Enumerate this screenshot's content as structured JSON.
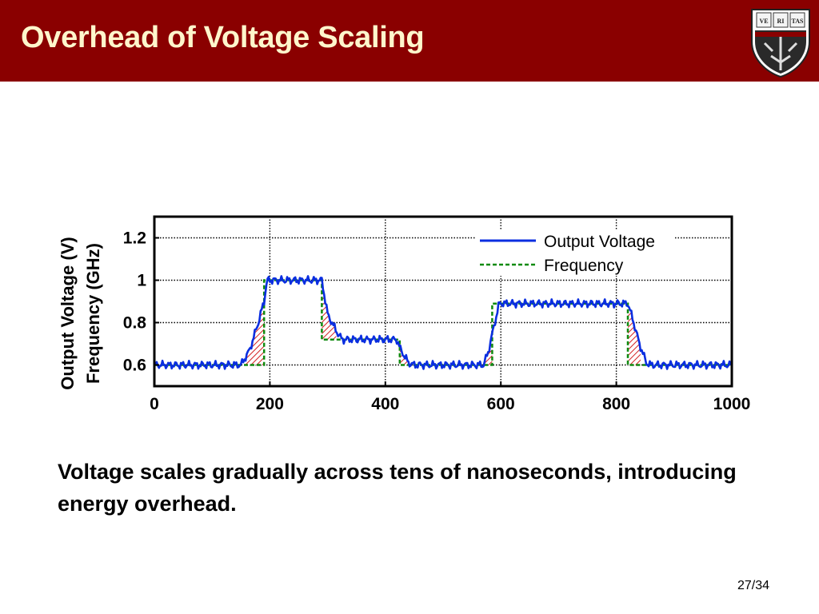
{
  "slide": {
    "title": "Overhead of Voltage Scaling",
    "caption": "Voltage scales gradually across tens of nanoseconds, introducing energy overhead.",
    "page_number": "27/34",
    "logo": {
      "icon": "harvard-shield-icon",
      "text": [
        "VE",
        "RI",
        "TAS"
      ]
    }
  },
  "colors": {
    "header_bg": "#8a0000",
    "title_text": "#fff6cc",
    "voltage_line": "#0a2ee0",
    "frequency_line": "#0f8a0f",
    "overhead_hatch": "#d42020"
  },
  "chart_data": {
    "type": "line",
    "title": "",
    "xlabel": "",
    "ylabel_lines": [
      "Output Voltage (V)",
      "Frequency (GHz)"
    ],
    "xlim": [
      0,
      1000
    ],
    "ylim": [
      0.5,
      1.3
    ],
    "x_ticks": [
      "0",
      "200",
      "400",
      "600",
      "800",
      "1000"
    ],
    "y_ticks": [
      "0.6",
      "0.8",
      "1",
      "1.2"
    ],
    "grid": true,
    "legend_position": "top-right",
    "series": [
      {
        "name": "Output Voltage",
        "style": "solid",
        "points": [
          [
            0,
            0.6
          ],
          [
            150,
            0.6
          ],
          [
            165,
            0.67
          ],
          [
            180,
            0.8
          ],
          [
            190,
            0.9
          ],
          [
            195,
            1.0
          ],
          [
            200,
            1.0
          ],
          [
            290,
            1.0
          ],
          [
            300,
            0.84
          ],
          [
            315,
            0.76
          ],
          [
            325,
            0.72
          ],
          [
            420,
            0.72
          ],
          [
            425,
            0.68
          ],
          [
            440,
            0.61
          ],
          [
            450,
            0.6
          ],
          [
            570,
            0.6
          ],
          [
            578,
            0.66
          ],
          [
            588,
            0.78
          ],
          [
            597,
            0.89
          ],
          [
            600,
            0.89
          ],
          [
            820,
            0.89
          ],
          [
            828,
            0.82
          ],
          [
            840,
            0.7
          ],
          [
            852,
            0.61
          ],
          [
            860,
            0.6
          ],
          [
            1000,
            0.6
          ]
        ]
      },
      {
        "name": "Frequency",
        "style": "dashed",
        "points": [
          [
            0,
            0.6
          ],
          [
            190,
            0.6
          ],
          [
            190,
            1.0
          ],
          [
            290,
            1.0
          ],
          [
            290,
            0.72
          ],
          [
            425,
            0.72
          ],
          [
            425,
            0.6
          ],
          [
            585,
            0.6
          ],
          [
            585,
            0.89
          ],
          [
            820,
            0.89
          ],
          [
            820,
            0.6
          ],
          [
            1000,
            0.6
          ]
        ]
      }
    ],
    "overhead_regions": [
      {
        "x": [
          155,
          190
        ]
      },
      {
        "x": [
          290,
          315
        ]
      },
      {
        "x": [
          425,
          438
        ]
      },
      {
        "x": [
          570,
          585
        ]
      },
      {
        "x": [
          820,
          842
        ]
      }
    ]
  }
}
